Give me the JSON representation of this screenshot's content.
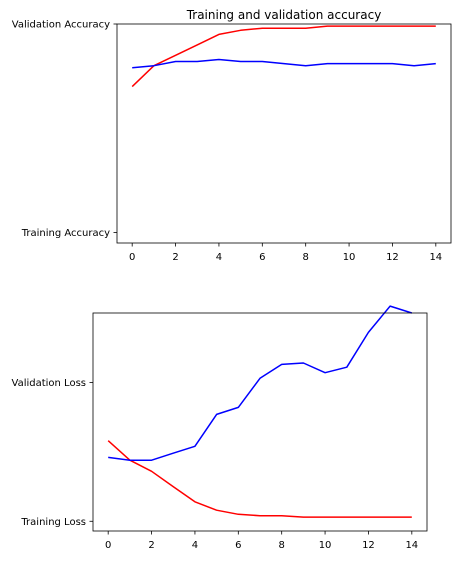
{
  "chart_data": [
    {
      "type": "line",
      "title": "Training and validation accuracy",
      "xlabel": "",
      "ylabel": "",
      "x": [
        0,
        1,
        2,
        3,
        4,
        5,
        6,
        7,
        8,
        9,
        10,
        11,
        12,
        13,
        14
      ],
      "xticks": [
        0,
        2,
        4,
        6,
        8,
        10,
        12,
        14
      ],
      "xlim": [
        -0.7,
        14.7
      ],
      "ylim": [
        -0.05,
        1.0
      ],
      "y_categorical_ticks": [
        {
          "label": "Training Accuracy",
          "value": 0
        },
        {
          "label": "Validation Accuracy",
          "value": 1
        }
      ],
      "grid": false,
      "series": [
        {
          "color": "#ff0000",
          "values": [
            0.7,
            0.8,
            0.85,
            0.9,
            0.95,
            0.97,
            0.98,
            0.98,
            0.98,
            0.99,
            0.99,
            0.99,
            0.99,
            0.99,
            0.99
          ]
        },
        {
          "color": "#0000ff",
          "values": [
            0.79,
            0.8,
            0.82,
            0.82,
            0.83,
            0.82,
            0.82,
            0.81,
            0.8,
            0.81,
            0.81,
            0.81,
            0.81,
            0.8,
            0.81
          ]
        }
      ]
    },
    {
      "type": "line",
      "title": "",
      "xlabel": "",
      "ylabel": "",
      "x": [
        0,
        1,
        2,
        3,
        4,
        5,
        6,
        7,
        8,
        9,
        10,
        11,
        12,
        13,
        14
      ],
      "xticks": [
        0,
        2,
        4,
        6,
        8,
        10,
        12,
        14
      ],
      "xlim": [
        -0.7,
        14.7
      ],
      "ylim": [
        -0.07,
        1.5
      ],
      "y_categorical_ticks": [
        {
          "label": "Training Loss",
          "value": 0
        },
        {
          "label": "Validation Loss",
          "value": 1
        }
      ],
      "grid": false,
      "series": [
        {
          "color": "#ff0000",
          "values": [
            0.58,
            0.44,
            0.36,
            0.25,
            0.14,
            0.08,
            0.05,
            0.04,
            0.04,
            0.03,
            0.03,
            0.03,
            0.03,
            0.03,
            0.03
          ]
        },
        {
          "color": "#0000ff",
          "values": [
            0.46,
            0.44,
            0.44,
            0.49,
            0.54,
            0.77,
            0.82,
            1.03,
            1.13,
            1.14,
            1.07,
            1.11,
            1.36,
            1.55,
            1.5
          ]
        }
      ]
    }
  ]
}
